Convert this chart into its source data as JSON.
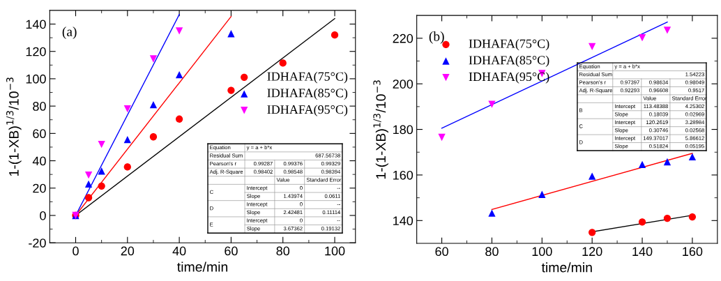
{
  "chart_data": [
    {
      "type": "scatter",
      "xlabel": "time/min",
      "ylabel": "1-(1-XB)$^{1/3}$/10$^{−3}$",
      "xlim": [
        -10,
        108
      ],
      "ylim": [
        -20,
        150
      ],
      "xticks": [
        0,
        20,
        40,
        60,
        80,
        100
      ],
      "yticks": [
        -20,
        0,
        20,
        40,
        60,
        80,
        100,
        120,
        140
      ],
      "grid": false,
      "legend": "right",
      "series": [
        {
          "name": "IDHAFA(75°C)",
          "color": "#ff0000",
          "marker": "circle",
          "x": [
            0,
            5,
            10,
            20,
            30,
            40,
            60,
            80,
            100
          ],
          "values": [
            0,
            13,
            21.5,
            35.5,
            57.5,
            70.5,
            91.5,
            111.5,
            132
          ]
        },
        {
          "name": "IDHAFA(85°C)",
          "color": "#0000ff",
          "marker": "triangle",
          "x": [
            0,
            5,
            10,
            20,
            30,
            40,
            60
          ],
          "values": [
            0,
            23,
            32.5,
            55.5,
            81,
            103,
            133
          ]
        },
        {
          "name": "IDHAFA(95°C)",
          "color": "#ff00ff",
          "marker": "triangle_down",
          "x": [
            0,
            5,
            10,
            20,
            30,
            40
          ],
          "values": [
            0,
            29.5,
            52,
            78,
            114.5,
            135
          ]
        },
        {
          "type": "line",
          "color": "#000000",
          "x": [
            0,
            100
          ],
          "values": [
            0,
            144
          ]
        },
        {
          "type": "line",
          "color": "#ff0000",
          "x": [
            0,
            60
          ],
          "values": [
            0,
            145.5
          ]
        },
        {
          "type": "line",
          "color": "#0000ff",
          "x": [
            0,
            40
          ],
          "values": [
            0,
            147
          ]
        }
      ],
      "annotations": [
        "(a)",
        "Equation",
        "y = a + b*x",
        "Residual Sum",
        "687.56738",
        "Pearson's r",
        "0.99287",
        "0.99376",
        "0.99329",
        "Adj. R-Square",
        "0.98402",
        "0.98548",
        "0.98394",
        "Value",
        "Standard Error",
        "C",
        "Intercept",
        "0",
        "--",
        "Slope",
        "1.43974",
        "0.0611",
        "D",
        "Intercept",
        "0",
        "--",
        "Slope",
        "2.42481",
        "0.11114",
        "E",
        "Intercept",
        "0",
        "--",
        "Slope",
        "3.67362",
        "0.19132"
      ]
    },
    {
      "type": "scatter",
      "xlabel": "time/min",
      "ylabel": "1-(1-XB)$^{1/3}$/10$^{−3}$",
      "xlim": [
        50,
        170
      ],
      "ylim": [
        130,
        230
      ],
      "xticks": [
        60,
        80,
        100,
        120,
        140,
        160
      ],
      "yticks": [
        140,
        160,
        180,
        200,
        220
      ],
      "grid": false,
      "legend": "top left",
      "series": [
        {
          "name": "IDHAFA(75°C)",
          "color": "#ff0000",
          "marker": "circle",
          "x": [
            120,
            140,
            150,
            160
          ],
          "values": [
            134.8,
            139.4,
            141,
            141.6
          ]
        },
        {
          "name": "IDHAFA(85°C)",
          "color": "#0000ff",
          "marker": "triangle",
          "x": [
            80,
            100,
            120,
            140,
            150,
            160
          ],
          "values": [
            143.3,
            151.5,
            159.5,
            164.6,
            165.8,
            168
          ]
        },
        {
          "name": "IDHAFA(95°C)",
          "color": "#ff00ff",
          "marker": "triangle_down",
          "x": [
            60,
            80,
            100,
            120,
            140,
            150
          ],
          "values": [
            176.5,
            191,
            204.5,
            216.3,
            220.2,
            223.5
          ]
        },
        {
          "type": "line",
          "color": "#000000",
          "x": [
            120,
            160
          ],
          "values": [
            135.1,
            142.3
          ]
        },
        {
          "type": "line",
          "color": "#ff0000",
          "x": [
            80,
            160
          ],
          "values": [
            144.9,
            169.5
          ]
        },
        {
          "type": "line",
          "color": "#0000ff",
          "x": [
            60,
            150
          ],
          "values": [
            180.5,
            227.1
          ]
        }
      ],
      "annotations": [
        "(b)",
        "Equation",
        "y = a + b*x",
        "Residual Sum",
        "1.54223",
        "Pearson's r",
        "0.97397",
        "0.98634",
        "0.98049",
        "Adj. R-Square",
        "0.92293",
        "0.96608",
        "0.9517",
        "Value",
        "Standard Error",
        "B",
        "Intercept",
        "113.48388",
        "4.25302",
        "Slope",
        "0.18039",
        "0.02969",
        "C",
        "Intercept",
        "120.2619",
        "3.28984",
        "Slope",
        "0.30746",
        "0.02568",
        "D",
        "Intercept",
        "149.37017",
        "5.86612",
        "Slope",
        "0.51824",
        "0.05195"
      ]
    }
  ]
}
